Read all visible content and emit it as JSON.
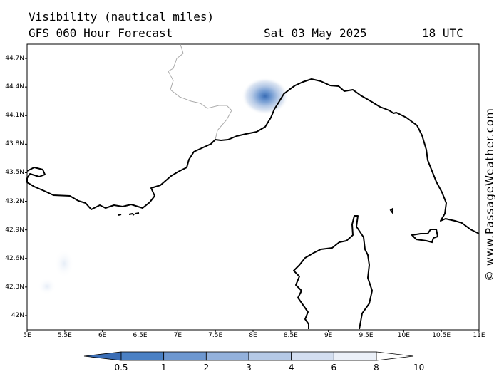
{
  "header": {
    "title": "Visibility (nautical miles)",
    "model": "GFS 060 Hour Forecast",
    "date": "Sat 03 May 2025",
    "time": "18 UTC"
  },
  "map": {
    "lat_labels": [
      "44.7N",
      "44.4N",
      "44.1N",
      "43.8N",
      "43.5N",
      "43.2N",
      "42.9N",
      "42.6N",
      "42.3N",
      "42N"
    ],
    "lon_labels": [
      "5E",
      "5.5E",
      "6E",
      "6.5E",
      "7E",
      "7.5E",
      "8E",
      "8.5E",
      "9E",
      "9.5E",
      "10E",
      "10.5E",
      "11E"
    ],
    "extent": {
      "lon": [
        5,
        11
      ],
      "lat": [
        41.85,
        44.85
      ]
    },
    "land_color": "#000000",
    "border_color": "#aaaaaa"
  },
  "colorbar": {
    "labels": [
      "0.5",
      "1",
      "2",
      "3",
      "4",
      "6",
      "8",
      "10"
    ],
    "colors": [
      "#3a6db5",
      "#4a80c4",
      "#6d97d0",
      "#93b1dc",
      "#b5c9e6",
      "#d3def0",
      "#ebf0f8",
      "#ffffff"
    ]
  },
  "credit": "© www.PassageWeather.com"
}
